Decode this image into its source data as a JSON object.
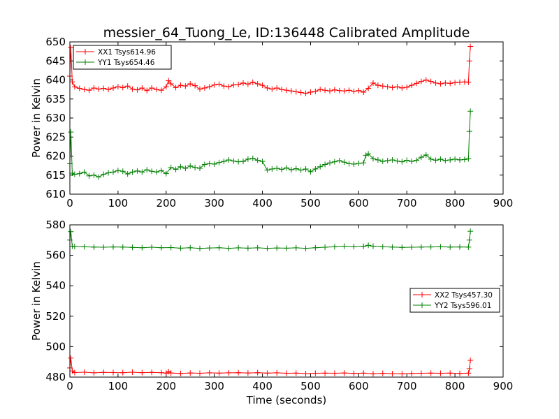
{
  "figure": {
    "title": "messier_64_Tuong_Le, ID:136448 Calibrated Amplitude",
    "xlabel": "Time (seconds)"
  },
  "chart_data": [
    {
      "type": "line",
      "title": "messier_64_Tuong_Le, ID:136448 Calibrated Amplitude",
      "xlabel": "",
      "ylabel": "Power in Kelvin",
      "xlim": [
        0,
        900
      ],
      "ylim": [
        610,
        650
      ],
      "xticks": [
        "0",
        "100",
        "200",
        "300",
        "400",
        "500",
        "600",
        "700",
        "800",
        "900"
      ],
      "yticks": [
        "610",
        "615",
        "620",
        "625",
        "630",
        "635",
        "640",
        "645",
        "650"
      ],
      "grid": false,
      "legend": "top-left",
      "series": [
        {
          "name": "XX1 Tsys614.96",
          "color": "#ff0000",
          "marker": "+",
          "x": [
            0,
            2,
            5,
            10,
            20,
            30,
            40,
            50,
            60,
            70,
            80,
            90,
            100,
            110,
            120,
            130,
            140,
            150,
            160,
            170,
            180,
            190,
            200,
            205,
            210,
            220,
            230,
            240,
            250,
            260,
            270,
            280,
            290,
            300,
            310,
            320,
            330,
            340,
            350,
            360,
            370,
            380,
            390,
            400,
            410,
            420,
            430,
            440,
            450,
            460,
            470,
            480,
            490,
            500,
            510,
            520,
            530,
            540,
            550,
            560,
            570,
            580,
            590,
            600,
            610,
            620,
            630,
            640,
            650,
            660,
            670,
            680,
            690,
            700,
            710,
            720,
            730,
            740,
            750,
            760,
            770,
            780,
            790,
            800,
            810,
            820,
            828,
            830,
            832
          ],
          "values": [
            641,
            648.5,
            639.5,
            638.2,
            637.8,
            637.5,
            637.3,
            637.9,
            637.6,
            637.8,
            637.5,
            637.9,
            638.2,
            638.0,
            638.4,
            637.6,
            637.4,
            637.9,
            637.2,
            637.9,
            637.5,
            637.3,
            638.2,
            639.8,
            639.0,
            638.0,
            638.6,
            638.4,
            639.0,
            638.5,
            637.6,
            637.9,
            638.2,
            638.7,
            638.9,
            638.4,
            638.2,
            638.7,
            638.8,
            639.2,
            638.9,
            639.4,
            639.0,
            638.6,
            637.9,
            637.6,
            637.9,
            637.5,
            637.3,
            637.1,
            636.9,
            636.7,
            636.5,
            636.8,
            637.0,
            637.5,
            637.3,
            637.1,
            637.4,
            637.2,
            637.1,
            637.3,
            637.0,
            637.2,
            636.8,
            637.8,
            639.2,
            638.6,
            638.4,
            638.2,
            638.0,
            638.2,
            637.9,
            638.1,
            638.6,
            639.1,
            639.6,
            640.0,
            639.6,
            639.2,
            639.0,
            639.2,
            639.1,
            639.3,
            639.4,
            639.5,
            639.4,
            645.0,
            648.8
          ]
        },
        {
          "name": "YY1 Tsys654.46",
          "color": "#008000",
          "marker": "+",
          "x": [
            0,
            2,
            5,
            10,
            20,
            30,
            40,
            50,
            60,
            70,
            80,
            90,
            100,
            110,
            120,
            130,
            140,
            150,
            160,
            170,
            180,
            190,
            200,
            210,
            220,
            230,
            240,
            250,
            260,
            270,
            280,
            290,
            300,
            310,
            320,
            330,
            340,
            350,
            360,
            370,
            380,
            390,
            400,
            410,
            420,
            430,
            440,
            450,
            460,
            470,
            480,
            490,
            500,
            510,
            520,
            530,
            540,
            550,
            560,
            570,
            580,
            590,
            600,
            610,
            615,
            620,
            630,
            640,
            650,
            660,
            670,
            680,
            690,
            700,
            710,
            720,
            730,
            740,
            750,
            760,
            770,
            780,
            790,
            800,
            810,
            820,
            828,
            830,
            832
          ],
          "values": [
            618,
            626.3,
            615.5,
            615.2,
            615.4,
            615.8,
            614.8,
            615.0,
            614.5,
            615.2,
            615.6,
            615.8,
            616.2,
            616.0,
            615.3,
            615.8,
            616.1,
            615.8,
            616.4,
            616.0,
            615.8,
            616.2,
            615.4,
            617.0,
            616.5,
            617.2,
            616.8,
            617.4,
            617.0,
            616.8,
            617.8,
            618.0,
            617.9,
            618.3,
            618.6,
            619.0,
            618.7,
            618.5,
            618.6,
            619.2,
            619.4,
            618.9,
            618.6,
            616.3,
            616.6,
            616.8,
            616.5,
            616.9,
            616.4,
            616.7,
            616.3,
            616.6,
            615.9,
            616.6,
            617.2,
            617.8,
            618.2,
            618.5,
            618.8,
            618.4,
            618.0,
            617.9,
            618.1,
            618.2,
            620.2,
            620.6,
            619.3,
            619.0,
            618.6,
            618.8,
            619.0,
            618.7,
            618.5,
            618.9,
            618.6,
            618.9,
            619.7,
            620.3,
            619.2,
            618.9,
            619.2,
            618.8,
            619.0,
            619.2,
            619.0,
            619.1,
            619.3,
            626.5,
            631.8
          ]
        }
      ]
    },
    {
      "type": "line",
      "title": "",
      "xlabel": "Time (seconds)",
      "ylabel": "Power in Kelvin",
      "xlim": [
        0,
        900
      ],
      "ylim": [
        480,
        580
      ],
      "xticks": [
        "0",
        "100",
        "200",
        "300",
        "400",
        "500",
        "600",
        "700",
        "800",
        "900"
      ],
      "yticks": [
        "480",
        "500",
        "520",
        "540",
        "560",
        "580"
      ],
      "grid": false,
      "legend": "right",
      "series": [
        {
          "name": "XX2 Tsys457.30",
          "color": "#ff0000",
          "marker": "+",
          "x": [
            0,
            2,
            5,
            10,
            30,
            50,
            70,
            90,
            110,
            130,
            150,
            170,
            190,
            200,
            205,
            210,
            230,
            250,
            270,
            290,
            310,
            330,
            350,
            370,
            390,
            410,
            430,
            450,
            470,
            490,
            510,
            530,
            550,
            570,
            590,
            610,
            630,
            650,
            670,
            690,
            710,
            730,
            750,
            770,
            790,
            810,
            828,
            830,
            832
          ],
          "values": [
            486,
            492.5,
            484.0,
            483.0,
            483.2,
            482.8,
            483.1,
            483.0,
            482.9,
            483.2,
            482.9,
            483.1,
            482.9,
            482.6,
            483.6,
            482.7,
            482.4,
            482.7,
            482.5,
            482.8,
            482.6,
            482.8,
            482.9,
            482.7,
            482.9,
            482.6,
            482.8,
            482.5,
            482.6,
            482.3,
            482.5,
            482.6,
            482.5,
            482.7,
            482.4,
            482.6,
            482.2,
            482.5,
            482.3,
            482.2,
            482.4,
            482.5,
            482.6,
            482.5,
            482.6,
            482.4,
            482.6,
            485.5,
            491.0
          ]
        },
        {
          "name": "YY2 Tsys596.01",
          "color": "#008000",
          "marker": "+",
          "x": [
            0,
            2,
            5,
            10,
            30,
            50,
            70,
            90,
            110,
            130,
            150,
            170,
            190,
            210,
            230,
            250,
            270,
            290,
            310,
            330,
            350,
            370,
            390,
            410,
            430,
            450,
            470,
            490,
            510,
            530,
            550,
            570,
            590,
            610,
            620,
            630,
            650,
            670,
            690,
            710,
            730,
            750,
            770,
            790,
            810,
            828,
            830,
            832
          ],
          "values": [
            570,
            575.5,
            566.0,
            565.8,
            565.6,
            565.4,
            565.3,
            565.5,
            565.4,
            565.2,
            565.0,
            565.3,
            565.0,
            565.1,
            564.7,
            565.0,
            564.5,
            564.8,
            565.0,
            564.6,
            564.9,
            564.7,
            564.9,
            564.6,
            564.8,
            564.7,
            564.9,
            564.6,
            565.0,
            565.3,
            565.6,
            566.0,
            565.7,
            565.9,
            566.6,
            566.0,
            565.6,
            565.4,
            565.2,
            565.3,
            565.4,
            565.5,
            565.6,
            565.4,
            565.5,
            565.4,
            570.0,
            575.8
          ]
        }
      ]
    }
  ]
}
